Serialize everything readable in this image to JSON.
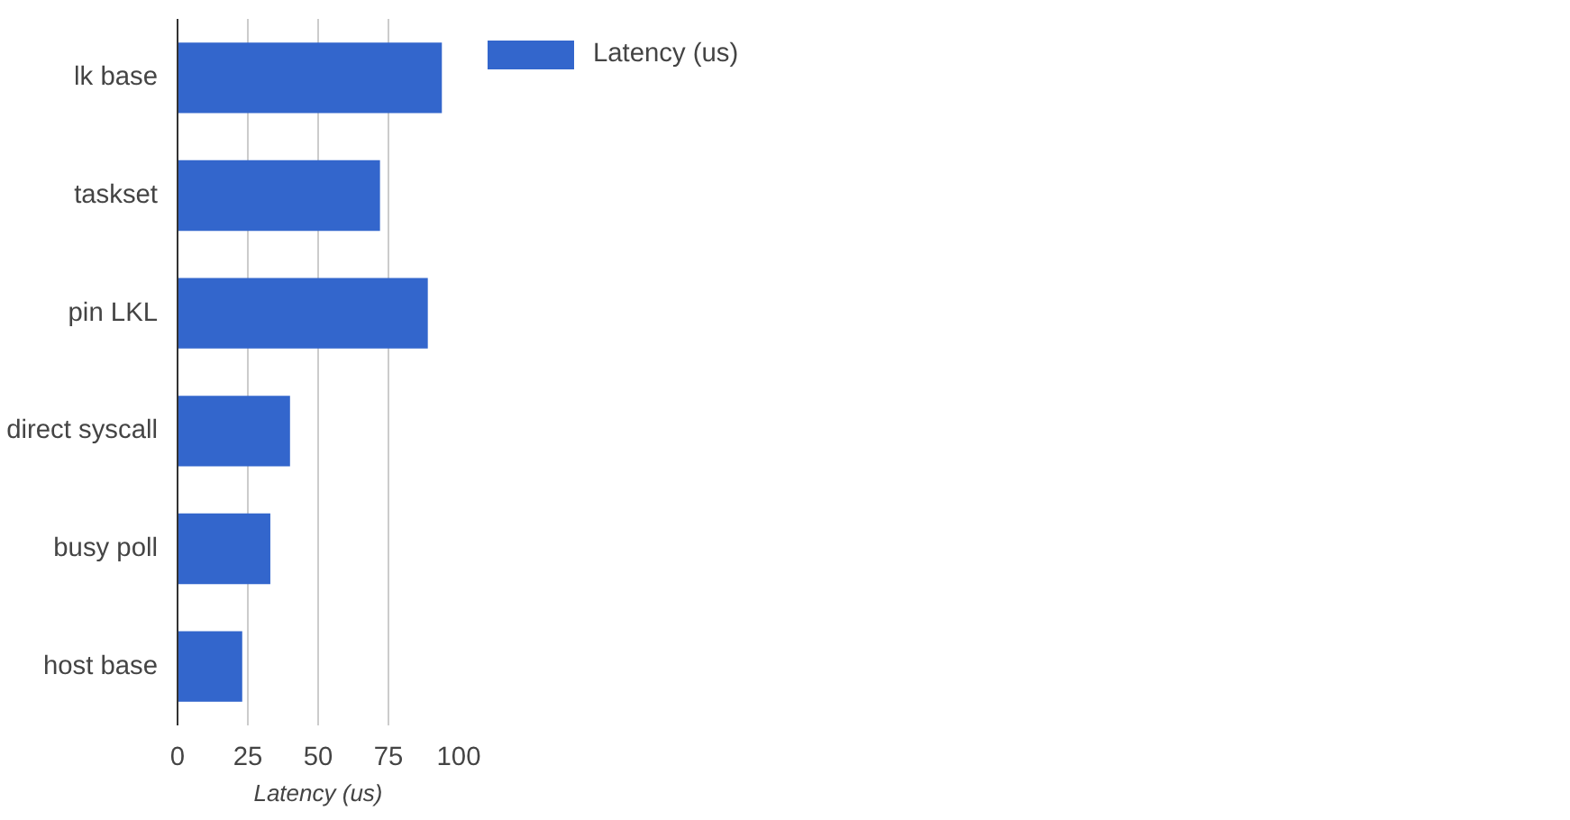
{
  "chart_data": {
    "type": "bar",
    "orientation": "horizontal",
    "xlabel": "Latency (us)",
    "categories": [
      "lk base",
      "taskset",
      "pin LKL",
      "direct syscall",
      "busy poll",
      "host base"
    ],
    "series": [
      {
        "name": "Latency (us)",
        "color": "#3366cc",
        "values": [
          94,
          72,
          89,
          40,
          33,
          23
        ]
      }
    ],
    "xlim": [
      0,
      100
    ],
    "xticks": [
      0,
      25,
      50,
      75,
      100
    ],
    "grid": "x",
    "legend": "top right"
  }
}
